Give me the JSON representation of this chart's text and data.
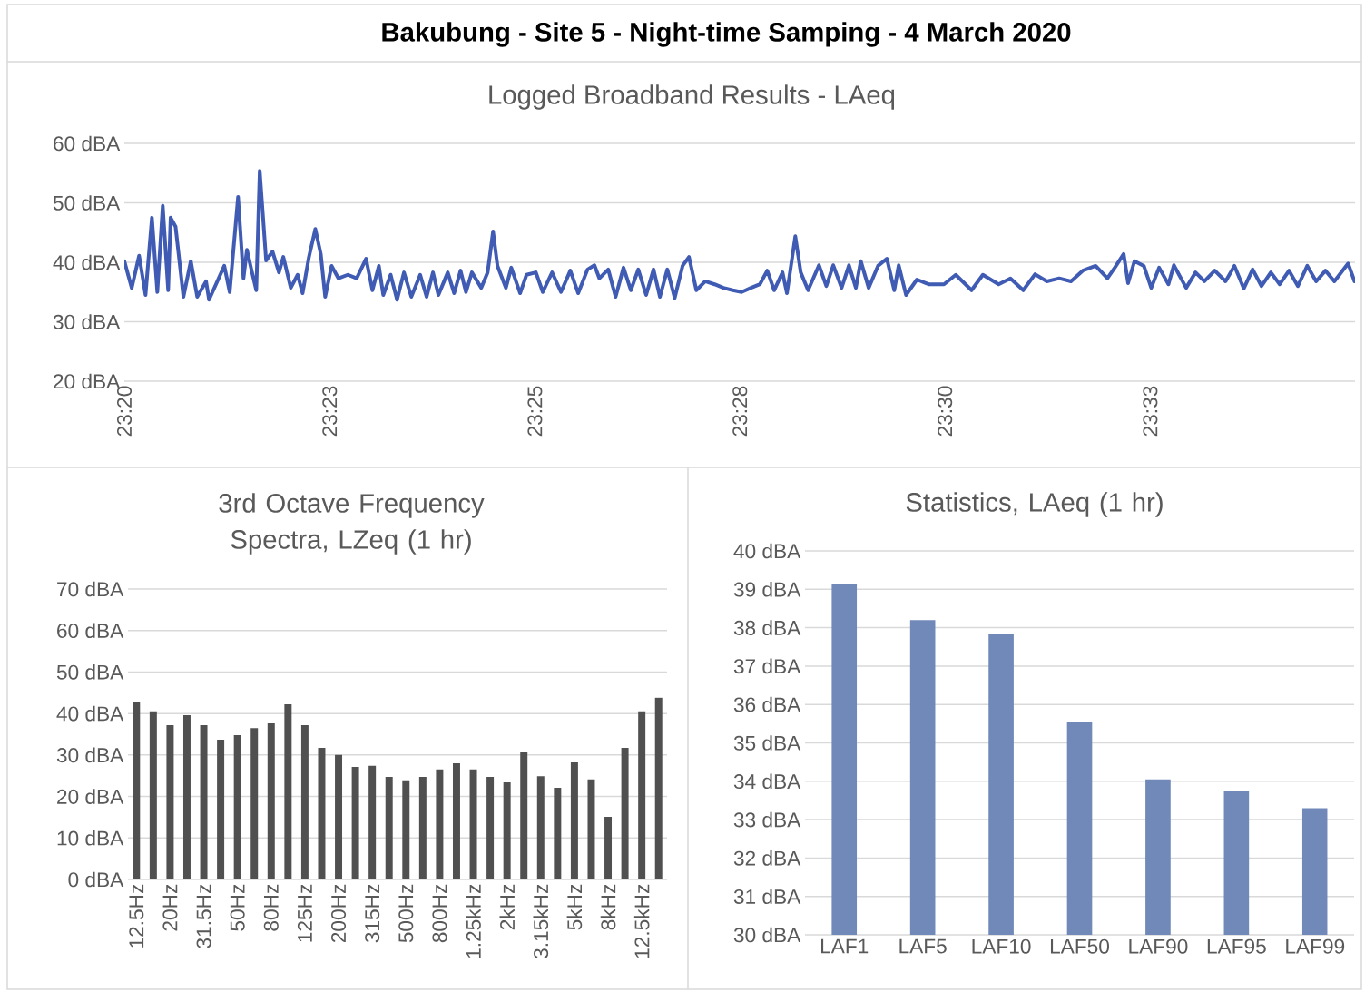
{
  "chart_data": [
    {
      "type": "line",
      "title": "Bakubung - Site 5 - Night-time Samping - 4 March 2020",
      "subtitle": "Logged Broadband Results - LAeq",
      "color": "#3f5bb3",
      "grid": "y",
      "x": [
        23.3333,
        23.3348,
        23.3363,
        23.3376,
        23.3389,
        23.34,
        23.3411,
        23.3422,
        23.3427,
        23.3437,
        23.3453,
        23.3468,
        23.3481,
        23.3499,
        23.3505,
        23.3536,
        23.3547,
        23.3564,
        23.3575,
        23.3582,
        23.3591,
        23.3601,
        23.3608,
        23.3621,
        23.3634,
        23.3647,
        23.3656,
        23.3671,
        23.3685,
        23.3695,
        23.3708,
        23.3721,
        23.3732,
        23.3741,
        23.3754,
        23.3768,
        23.3787,
        23.3805,
        23.3824,
        23.3837,
        23.385,
        23.3859,
        23.3874,
        23.3887,
        23.3901,
        23.3916,
        23.3934,
        23.3947,
        23.396,
        23.3971,
        23.399,
        23.4003,
        23.4016,
        23.4027,
        23.4039,
        23.4058,
        23.4071,
        23.4082,
        23.4091,
        23.4108,
        23.4119,
        23.4137,
        23.415,
        23.4169,
        23.4183,
        23.4202,
        23.422,
        23.4239,
        23.4255,
        23.4274,
        23.4288,
        23.4298,
        23.4316,
        23.4331,
        23.4347,
        23.4362,
        23.4377,
        23.4393,
        23.4408,
        23.4421,
        23.4436,
        23.4451,
        23.4467,
        23.448,
        23.4495,
        23.4513,
        23.4532,
        23.455,
        23.4569,
        23.4587,
        23.4606,
        23.4624,
        23.4639,
        23.4653,
        23.467,
        23.4679,
        23.4696,
        23.4707,
        23.4722,
        23.4744,
        23.4759,
        23.4773,
        23.479,
        23.4805,
        23.4819,
        23.4829,
        23.4845,
        23.4864,
        23.4882,
        23.4897,
        23.4906,
        23.4921,
        23.4943,
        23.4967,
        23.4998,
        23.5022,
        23.5054,
        23.5077,
        23.5109,
        23.5133,
        23.5159,
        23.5183,
        23.5207,
        23.5232,
        23.5256,
        23.528,
        23.5306,
        23.533,
        23.5345,
        23.5363,
        23.5372,
        23.5385,
        23.5404,
        23.5419,
        23.5435,
        23.5454,
        23.5465,
        23.549,
        23.5509,
        23.5527,
        23.5548,
        23.557,
        23.5588,
        23.5607,
        23.5625,
        23.5643,
        23.5662,
        23.568,
        23.5699,
        23.5717,
        23.5736,
        23.5754,
        23.5773,
        23.5791,
        23.5819,
        23.5832
      ],
      "values": [
        40.2,
        35.7,
        41.1,
        34.5,
        47.5,
        35,
        49.5,
        35.3,
        47.5,
        46,
        34.2,
        40.2,
        34.2,
        36.8,
        33.7,
        39.4,
        35,
        51,
        37.3,
        42.1,
        38.8,
        35.3,
        55.4,
        40.3,
        41.8,
        38.3,
        40.9,
        35.7,
        37.9,
        34.8,
        40.9,
        45.6,
        41.4,
        34.2,
        39.4,
        37.3,
        37.9,
        37.3,
        40.6,
        35.3,
        39.4,
        34.5,
        37.9,
        33.7,
        38.3,
        34.2,
        37.9,
        34.2,
        38.3,
        34.5,
        38.3,
        34.8,
        38.6,
        35,
        38.3,
        35.7,
        38.3,
        45.2,
        39.4,
        35.7,
        39.1,
        34.8,
        37.9,
        38.3,
        35,
        38.3,
        35,
        38.6,
        34.8,
        38.8,
        39.5,
        37.3,
        38.8,
        34.2,
        39.1,
        35.3,
        38.8,
        34.5,
        38.8,
        34.2,
        38.8,
        34,
        39.4,
        40.9,
        35.3,
        36.8,
        36.3,
        35.7,
        35.3,
        35,
        35.7,
        36.3,
        38.6,
        35.3,
        38.3,
        34.8,
        44.4,
        38.3,
        35.3,
        39.5,
        36,
        39.5,
        35.7,
        39.5,
        35.7,
        40.2,
        35.7,
        39.4,
        40.6,
        35.3,
        39.5,
        34.5,
        37.1,
        36.3,
        36.3,
        37.9,
        35.3,
        37.9,
        36.3,
        37.3,
        35.3,
        38,
        36.8,
        37.3,
        36.8,
        38.6,
        39.4,
        37.3,
        39.1,
        41.4,
        36.5,
        40.2,
        39.4,
        35.7,
        39.1,
        36.3,
        39.5,
        35.7,
        38.3,
        36.8,
        38.6,
        36.8,
        39.4,
        35.6,
        38.8,
        36,
        38.3,
        36.3,
        38.6,
        36,
        39.4,
        36.8,
        38.6,
        36.8,
        39.8,
        36.8
      ],
      "xlim": [
        23.3333,
        23.5833
      ],
      "xticks": [
        {
          "value": 23.3333,
          "label": "23:20"
        },
        {
          "value": 23.37501,
          "label": "23:23"
        },
        {
          "value": 23.4167,
          "label": "23:25"
        },
        {
          "value": 23.45834,
          "label": "23:28"
        },
        {
          "value": 23.5,
          "label": "23:30"
        },
        {
          "value": 23.5417,
          "label": "23:33"
        }
      ],
      "ylim": [
        20,
        60
      ],
      "yticks": [
        {
          "value": 20,
          "label": "20 dBA"
        },
        {
          "value": 30,
          "label": "30 dBA"
        },
        {
          "value": 40,
          "label": "40 dBA"
        },
        {
          "value": 50,
          "label": "50 dBA"
        },
        {
          "value": 60,
          "label": "60 dBA"
        }
      ]
    },
    {
      "type": "bar",
      "title": "3rd Octave Frequency Spectra, LZeq (1 hr)",
      "color": "#505050",
      "grid": "y",
      "categories": [
        "12.5Hz",
        null,
        "20Hz",
        null,
        "31.5Hz",
        null,
        "50Hz",
        null,
        "80Hz",
        null,
        "125Hz",
        null,
        "200Hz",
        null,
        "315Hz",
        null,
        "500Hz",
        null,
        "800Hz",
        null,
        "1.25kHz",
        null,
        "2kHz",
        null,
        "3.15kHz",
        null,
        "5kHz",
        null,
        "8kHz",
        null,
        "12.5kHz",
        null
      ],
      "values": [
        42.7,
        40.5,
        37.2,
        39.6,
        37.2,
        33.7,
        34.8,
        36.5,
        37.6,
        42.2,
        37.2,
        31.7,
        30,
        27.1,
        27.4,
        24.7,
        23.9,
        24.7,
        26.5,
        28,
        26.5,
        24.7,
        23.4,
        30.6,
        24.9,
        22.1,
        28.2,
        24.1,
        15.1,
        31.7,
        40.5,
        43.8
      ],
      "ylim": [
        0,
        70
      ],
      "yticks": [
        {
          "value": 0,
          "label": "0 dBA"
        },
        {
          "value": 10,
          "label": "10 dBA"
        },
        {
          "value": 20,
          "label": "20 dBA"
        },
        {
          "value": 30,
          "label": "30 dBA"
        },
        {
          "value": 40,
          "label": "40 dBA"
        },
        {
          "value": 50,
          "label": "50 dBA"
        },
        {
          "value": 60,
          "label": "60 dBA"
        },
        {
          "value": 70,
          "label": "70 dBA"
        }
      ]
    },
    {
      "type": "bar",
      "title": "Statistics, LAeq (1 hr)",
      "color": "#7089b8",
      "grid": "y",
      "categories": [
        "LAF1",
        "LAF5",
        "LAF10",
        "LAF50",
        "LAF90",
        "LAF95",
        "LAF99"
      ],
      "values": [
        39.15,
        38.2,
        37.85,
        35.55,
        34.05,
        33.75,
        33.3
      ],
      "ylim": [
        30,
        40
      ],
      "yticks": [
        {
          "value": 30,
          "label": "30 dBA"
        },
        {
          "value": 31,
          "label": "31 dBA"
        },
        {
          "value": 32,
          "label": "32 dBA"
        },
        {
          "value": 33,
          "label": "33 dBA"
        },
        {
          "value": 34,
          "label": "34 dBA"
        },
        {
          "value": 35,
          "label": "35 dBA"
        },
        {
          "value": 36,
          "label": "36 dBA"
        },
        {
          "value": 37,
          "label": "37 dBA"
        },
        {
          "value": 38,
          "label": "38 dBA"
        },
        {
          "value": 39,
          "label": "39 dBA"
        },
        {
          "value": 40,
          "label": "40 dBA"
        }
      ]
    }
  ]
}
